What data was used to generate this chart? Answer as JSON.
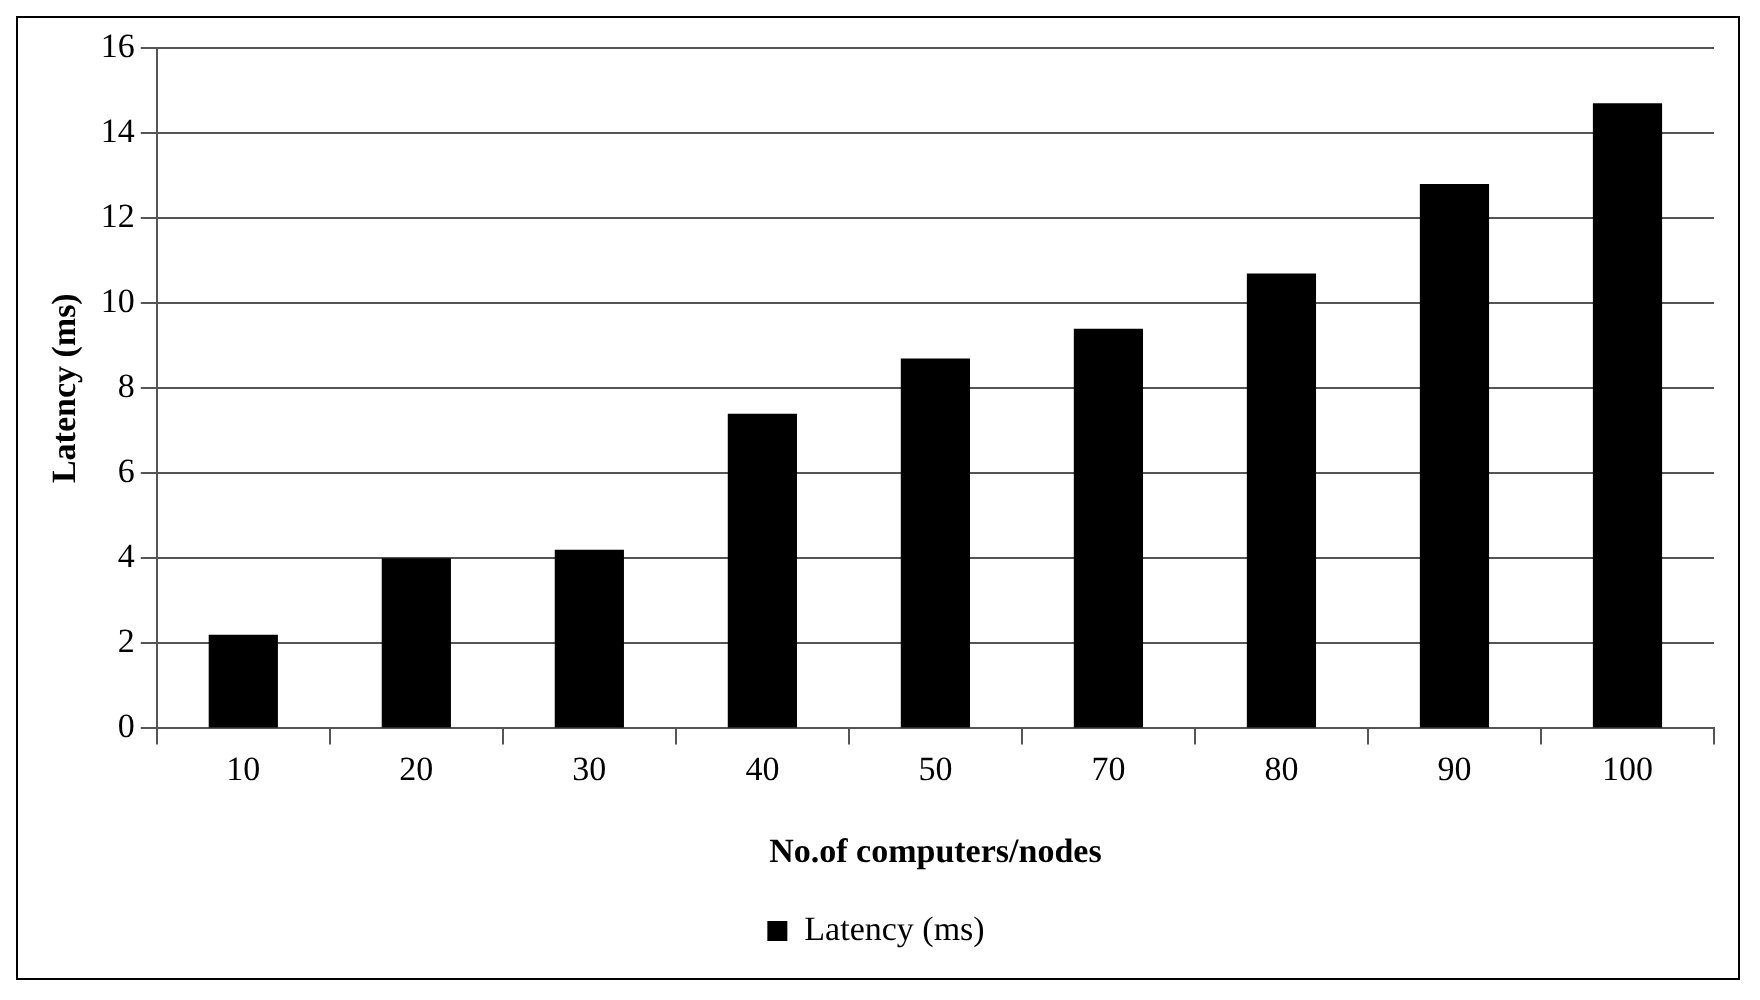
{
  "chart_data": {
    "type": "bar",
    "xlabel": "No.of computers/nodes",
    "ylabel": "Latency (ms)",
    "categories": [
      "10",
      "20",
      "30",
      "40",
      "50",
      "70",
      "80",
      "90",
      "100"
    ],
    "series": [
      {
        "name": "Latency (ms)",
        "color": "#000000",
        "values": [
          2.2,
          4.0,
          4.2,
          7.4,
          8.7,
          9.4,
          10.7,
          12.8,
          14.7
        ]
      }
    ],
    "ylim": [
      0,
      16
    ],
    "yticks": [
      0,
      2,
      4,
      6,
      8,
      10,
      12,
      14,
      16
    ],
    "grid": "y",
    "legend": "bottom"
  }
}
